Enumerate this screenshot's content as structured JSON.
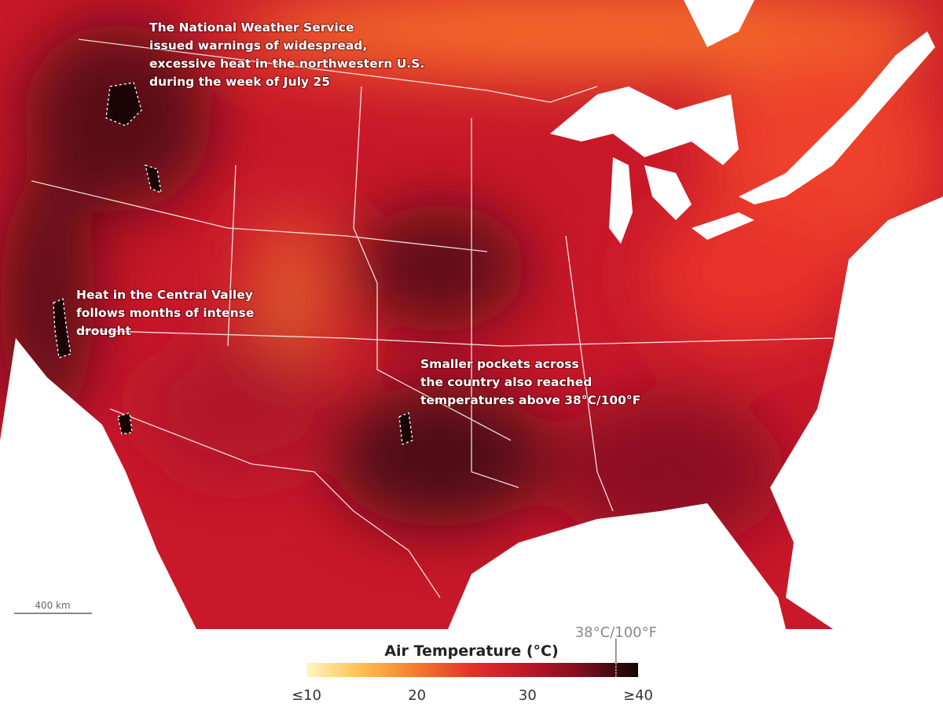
{
  "annotations": [
    {
      "lines": [
        "The National Weather Service",
        "issued warnings of widespread,",
        "excessive heat in the northwestern U.S.",
        "during the week of July 25"
      ]
    },
    {
      "lines": [
        "Heat in the Central Valley",
        "follows months of intense",
        "drought"
      ]
    },
    {
      "lines": [
        "Smaller pockets across",
        "the country also reached",
        "temperatures above 38°C/100°F"
      ]
    }
  ],
  "scale_bar": "400 km",
  "legend": {
    "title": "Air Temperature (°C)",
    "lim": [
      10,
      40
    ],
    "ticks": [
      {
        "value": 10,
        "label": "≤10"
      },
      20,
      30,
      {
        "value": 40,
        "label": "≥40"
      }
    ],
    "marker": {
      "value": 38,
      "label": "38°C/100°F"
    },
    "colors": [
      "#fff6c2",
      "#fdbf4e",
      "#f47a2c",
      "#e5302a",
      "#bf1628",
      "#7a0f1f",
      "#120606"
    ]
  }
}
